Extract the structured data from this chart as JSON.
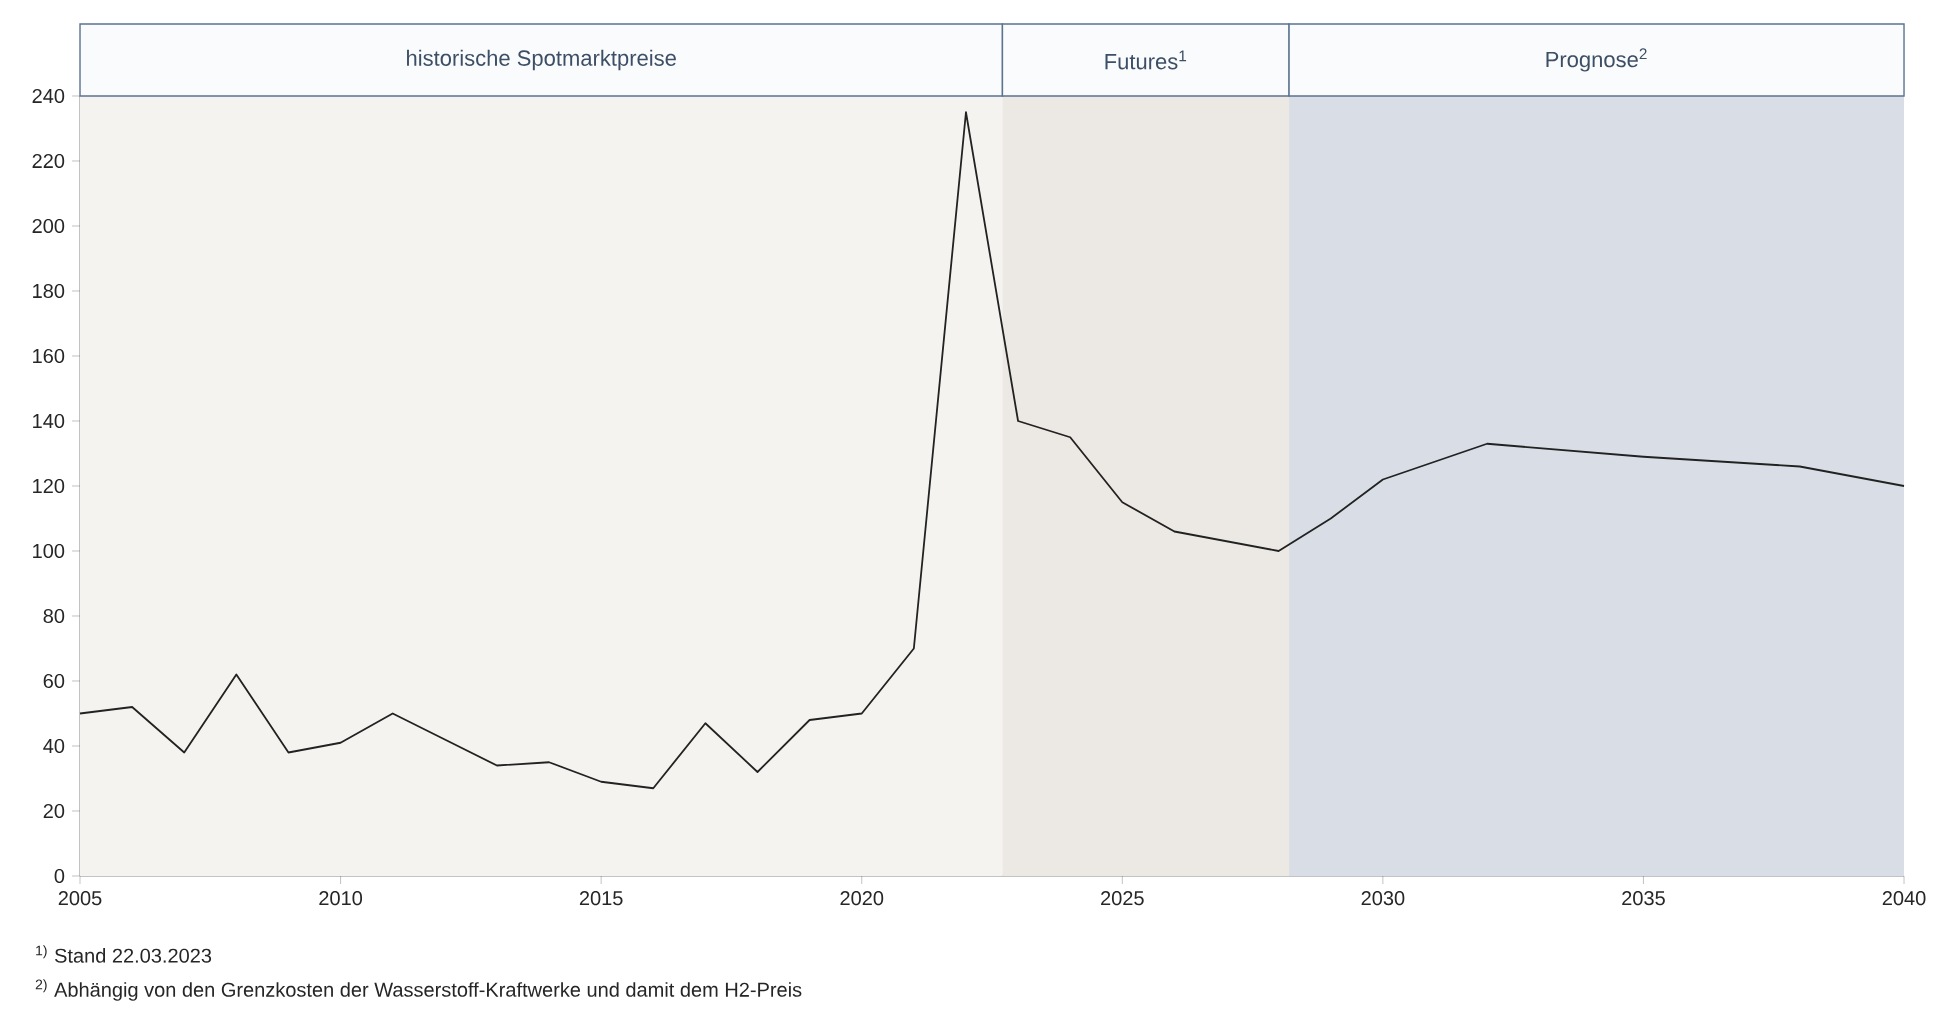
{
  "chart_data": {
    "type": "line",
    "x": [
      2005,
      2006,
      2007,
      2008,
      2009,
      2010,
      2011,
      2012,
      2013,
      2014,
      2015,
      2016,
      2017,
      2018,
      2019,
      2020,
      2021,
      2022,
      2023,
      2024,
      2025,
      2026,
      2027,
      2028,
      2029,
      2030,
      2032,
      2035,
      2038,
      2040
    ],
    "series": [
      {
        "color": "#222222",
        "values": [
          50,
          52,
          38,
          62,
          38,
          41,
          50,
          42,
          34,
          35,
          29,
          27,
          47,
          32,
          48,
          50,
          70,
          235,
          140,
          135,
          115,
          106,
          103,
          100,
          110,
          122,
          133,
          129,
          126,
          120
        ]
      }
    ],
    "xlim": [
      2005,
      2040
    ],
    "xticks": [
      2005,
      2010,
      2015,
      2020,
      2025,
      2030,
      2035,
      2040
    ],
    "ylim": [
      0,
      240
    ],
    "yticks": [
      0,
      20,
      40,
      60,
      80,
      100,
      120,
      140,
      160,
      180,
      200,
      220,
      240
    ],
    "grid": false,
    "marker": "none",
    "line_style": "solid",
    "bands": [
      {
        "axis": "x",
        "from": 2005,
        "to": 2022.7,
        "label": "historische Spotmarktpreise",
        "color": "#f4f3f0"
      },
      {
        "axis": "x",
        "from": 2022.7,
        "to": 2028.2,
        "label": "Futures$^{1}$",
        "color": "#ece8e3"
      },
      {
        "axis": "x",
        "from": 2028.2,
        "to": 2040,
        "label": "Prognose$^{2}$",
        "color": "#d9dee6"
      }
    ],
    "annotations": [
      "$^{1)}$ Stand   22.03.2023",
      "$^{2)}$ Abhängig von den Grenzkosten der Wasserstoff-Kraftwerke und damit dem H2-Preis"
    ]
  }
}
